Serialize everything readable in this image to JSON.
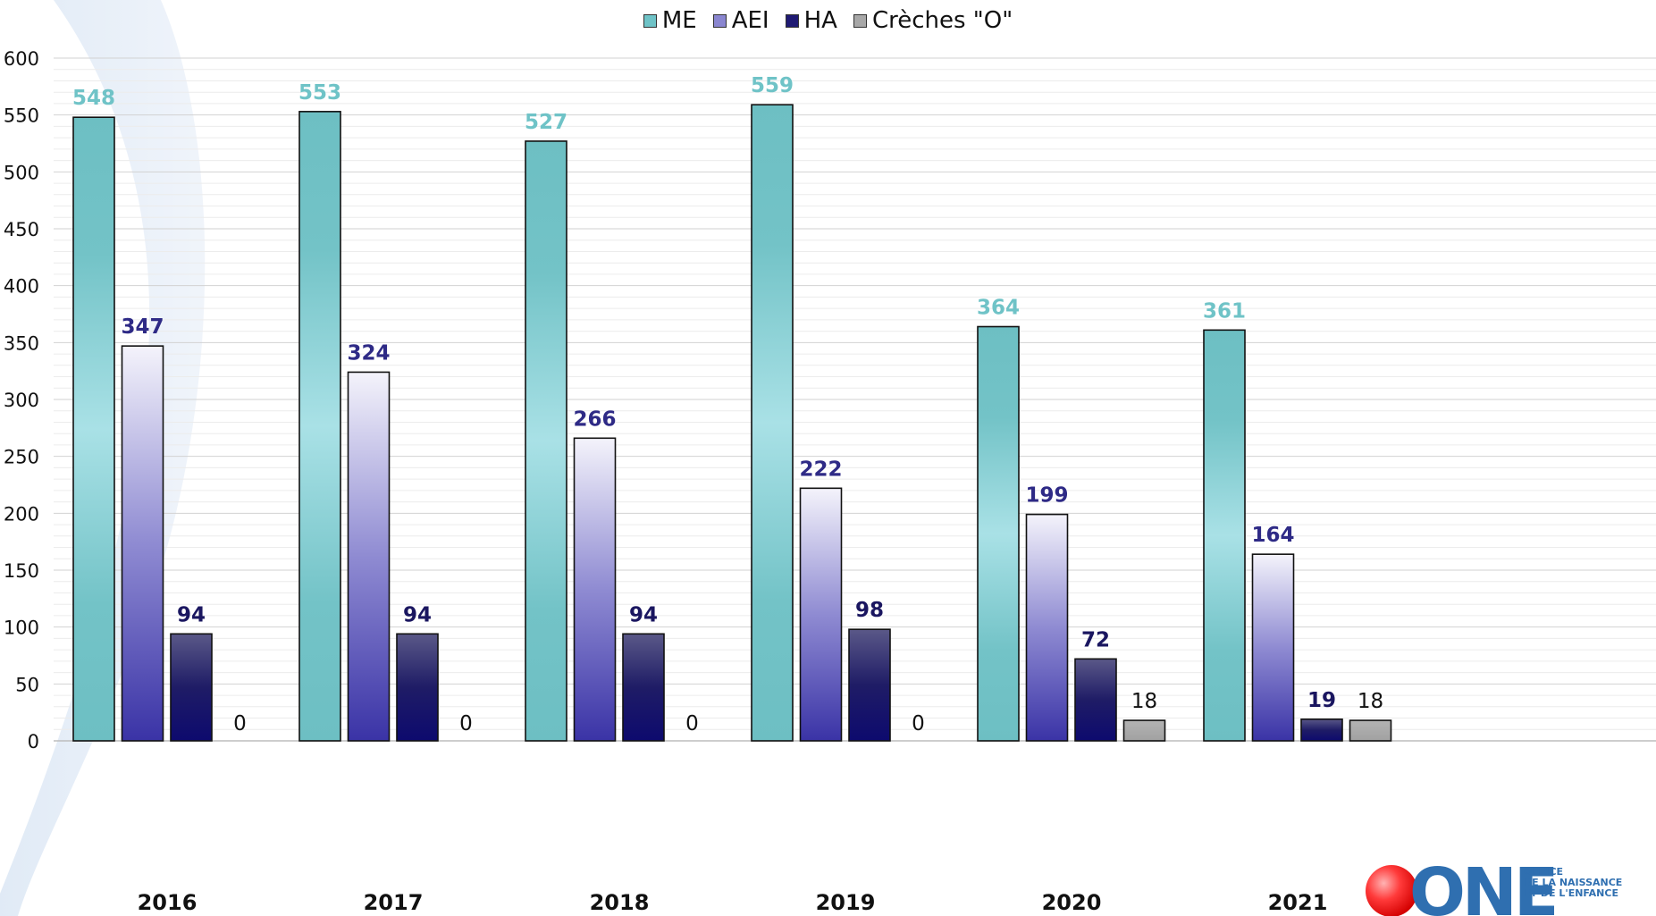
{
  "chart_data": {
    "type": "bar",
    "title": "",
    "xlabel": "",
    "ylabel": "",
    "categories": [
      "2016",
      "2017",
      "2018",
      "2019",
      "2020",
      "2021"
    ],
    "ylim": [
      0,
      600
    ],
    "yticks": [
      0,
      50,
      100,
      150,
      200,
      250,
      300,
      350,
      400,
      450,
      500,
      550,
      600
    ],
    "grid": true,
    "legend_position": "top-center",
    "series": [
      {
        "name": "ME",
        "values": [
          548,
          553,
          527,
          559,
          364,
          361
        ],
        "color": "#6fc3c7",
        "label_color": "#6fc3c7"
      },
      {
        "name": "AEI",
        "values": [
          347,
          324,
          266,
          222,
          199,
          164
        ],
        "color": "#7d79c8",
        "label_color": "#2e2a86"
      },
      {
        "name": "HA",
        "values": [
          94,
          94,
          94,
          98,
          72,
          19
        ],
        "color": "#1f1a73",
        "label_color": "#1a1660"
      },
      {
        "name": "Crèches \"O\"",
        "values": [
          0,
          0,
          0,
          0,
          18,
          18
        ],
        "color": "#a8a8a8",
        "label_color": "#111111"
      }
    ]
  },
  "legend": {
    "items": [
      {
        "label": "ME",
        "color": "#6fc3c7"
      },
      {
        "label": "AEI",
        "color": "#7d79c8"
      },
      {
        "label": "HA",
        "color": "#1f1a73"
      },
      {
        "label": "Crèches \"O\"",
        "color": "#a8a8a8"
      }
    ]
  },
  "logo": {
    "text": "ONE",
    "sub_lines": [
      "OFFICE",
      "DE LA NAISSANCE",
      "ET DE L'ENFANCE"
    ]
  }
}
